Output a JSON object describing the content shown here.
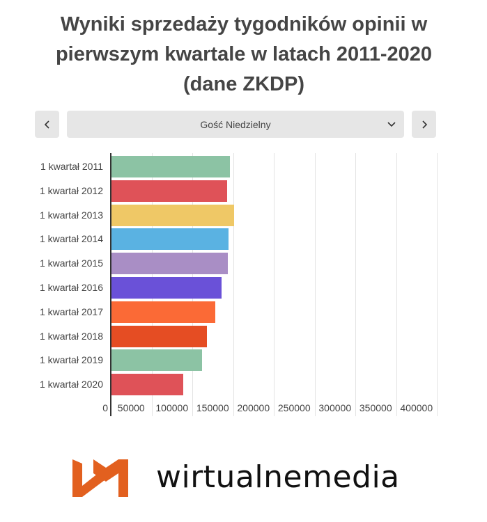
{
  "title": "Wyniki sprzedaży tygodników opinii w pierwszym kwartale w latach 2011-2020 (dane ZKDP)",
  "controls": {
    "prev_icon": "chevron-left-icon",
    "next_icon": "chevron-right-icon",
    "selected": "Gość Niedzielny",
    "dropdown_icon": "chevron-down-icon"
  },
  "chart_data": {
    "type": "bar",
    "orientation": "horizontal",
    "title": "Wyniki sprzedaży tygodników opinii w pierwszym kwartale w latach 2011-2020 (dane ZKDP)",
    "series_name": "Gość Niedzielny",
    "categories": [
      "1 kwartał 2011",
      "1 kwartał 2012",
      "1 kwartał 2013",
      "1 kwartał 2014",
      "1 kwartał 2015",
      "1 kwartał 2016",
      "1 kwartał 2017",
      "1 kwartał 2018",
      "1 kwartał 2019",
      "1 kwartał 2020"
    ],
    "values": [
      145000,
      142000,
      150000,
      143500,
      142500,
      135000,
      127500,
      117000,
      111000,
      88000
    ],
    "colors": [
      "#8cc3a4",
      "#df5258",
      "#efc866",
      "#5ab2e2",
      "#a98ec5",
      "#6a51d8",
      "#fb6a36",
      "#e54d23",
      "#8cc3a4",
      "#df5258"
    ],
    "xlabel": "",
    "ylabel": "",
    "xlim": [
      0,
      400000
    ],
    "x_ticks": [
      "0",
      "50000",
      "100000",
      "150000",
      "200000",
      "250000",
      "300000",
      "350000",
      "400000"
    ],
    "grid": true,
    "legend": "none"
  },
  "footer": {
    "logo_text": "wirtualnemedia",
    "logo_color": "#e2601f"
  }
}
